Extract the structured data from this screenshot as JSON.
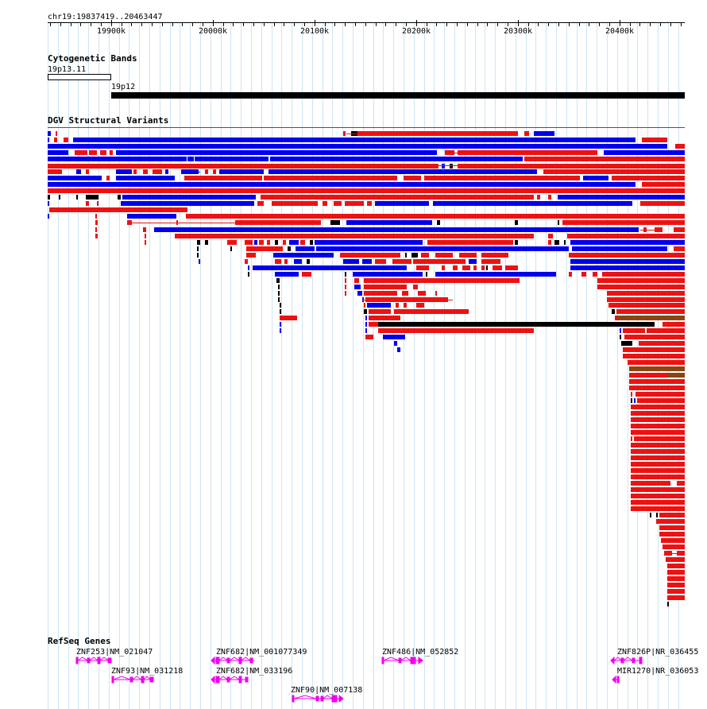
{
  "region": "chr19:19837419..20463447",
  "ruler": {
    "ticks": [
      "19900k",
      "20000k",
      "20100k",
      "20200k",
      "20300k",
      "20400k"
    ]
  },
  "tracks": {
    "cytobands": {
      "title": "Cytogenetic Bands",
      "bands": [
        "19p13.11",
        "19p12"
      ]
    },
    "dgv": {
      "title": "DGV Structural Variants",
      "colors": {
        "loss": "#ee1111",
        "gain": "#0000ee",
        "complex": "#000000",
        "inversion": "#8b4513"
      }
    },
    "refseq": {
      "title": "RefSeq Genes",
      "color": "#ee00ee",
      "genes": [
        {
          "label": "ZNF253|NM_021047"
        },
        {
          "label": "ZNF93|NM_031218"
        },
        {
          "label": "ZNF682|NM_001077349"
        },
        {
          "label": "ZNF682|NM_033196"
        },
        {
          "label": "ZNF90|NM_007138"
        },
        {
          "label": "ZNF486|NM_052852"
        },
        {
          "label": "ZNF826P|NR_036455"
        },
        {
          "label": "MIR1270|NR_036053"
        }
      ]
    }
  }
}
